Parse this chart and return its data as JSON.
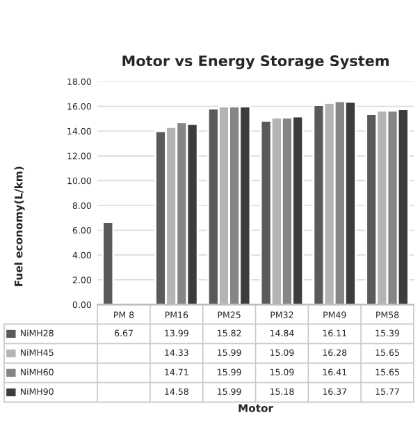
{
  "chart_data": {
    "type": "bar",
    "title": "Motor vs Energy Storage System",
    "annotations": [
      "Motor"
    ],
    "ylabel": "Fuel economy(L/km)",
    "categories": [
      "PM 8",
      "PM16",
      "PM25",
      "PM32",
      "PM49",
      "PM58"
    ],
    "series": [
      {
        "name": "NiMH28",
        "color": "#5a5a5a",
        "values": [
          6.67,
          13.99,
          15.82,
          14.84,
          16.11,
          15.39
        ]
      },
      {
        "name": "NiMH45",
        "color": "#b4b4b4",
        "values": [
          null,
          14.33,
          15.99,
          15.09,
          16.28,
          15.65
        ]
      },
      {
        "name": "NiMH60",
        "color": "#858585",
        "values": [
          null,
          14.71,
          15.99,
          15.09,
          16.41,
          15.65
        ]
      },
      {
        "name": "NiMH90",
        "color": "#3c3c3c",
        "values": [
          null,
          14.58,
          15.99,
          15.18,
          16.37,
          15.77
        ]
      }
    ],
    "ylim": [
      0,
      18
    ],
    "yticks": [
      {
        "value": 0,
        "label": "0.00"
      },
      {
        "value": 2,
        "label": "2.00"
      },
      {
        "value": 4,
        "label": "4.00"
      },
      {
        "value": 6,
        "label": "6.00"
      },
      {
        "value": 8,
        "label": "8.00"
      },
      {
        "value": 10,
        "label": "10.00"
      },
      {
        "value": 12,
        "label": "12.00"
      },
      {
        "value": 14,
        "label": "14.00"
      },
      {
        "value": 16,
        "label": "16.00"
      },
      {
        "value": 18,
        "label": "18.00"
      }
    ],
    "grid": "y",
    "data_labels": true,
    "legend": "bottom left"
  }
}
